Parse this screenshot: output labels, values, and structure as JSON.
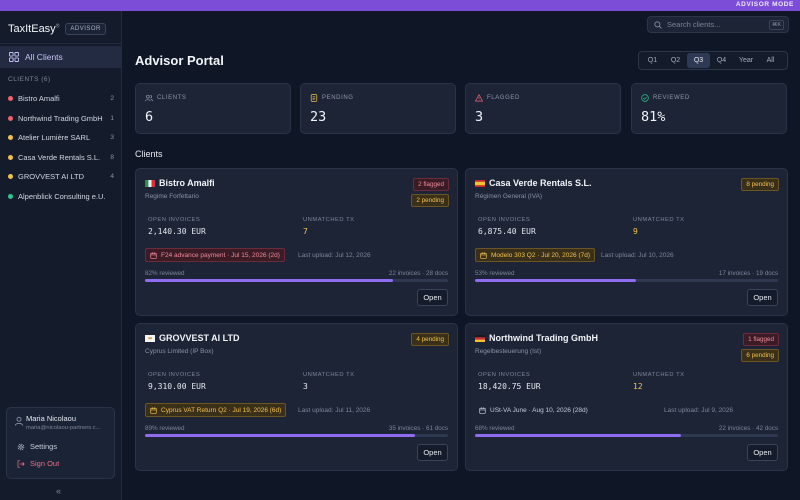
{
  "topbar": {
    "mode_label": "ADVISOR MODE",
    "color": "#7c4dd6"
  },
  "brand": {
    "name": "TaxItEasy",
    "mark": "®",
    "badge": "ADVISOR"
  },
  "sidebar": {
    "all_clients_label": "All Clients",
    "clients_heading": "CLIENTS (6)",
    "clients": [
      {
        "name": "Bistro Amalfi",
        "count": "2",
        "dot": "#f0616d"
      },
      {
        "name": "Northwind Trading GmbH",
        "count": "1",
        "dot": "#f0616d"
      },
      {
        "name": "Atelier Lumière SARL",
        "count": "3",
        "dot": "#f2c14d"
      },
      {
        "name": "Casa Verde Rentals S.L.",
        "count": "8",
        "dot": "#f2c14d"
      },
      {
        "name": "GROVVEST AI LTD",
        "count": "4",
        "dot": "#f2c14d"
      },
      {
        "name": "Alpenblick Consulting e.U.",
        "count": "",
        "dot": "#2fc58f"
      }
    ],
    "user": {
      "name": "Maria Nicolaou",
      "email": "maria@nicolaou-partners.c..."
    },
    "settings_label": "Settings",
    "signout_label": "Sign Out",
    "collapse_icon": "«"
  },
  "search": {
    "placeholder": "Search clients...",
    "shortcut": "⌘K"
  },
  "page": {
    "title": "Advisor Portal",
    "section_title": "Clients"
  },
  "periods": [
    "Q1",
    "Q2",
    "Q3",
    "Q4",
    "Year",
    "All"
  ],
  "active_period": "Q3",
  "stats": [
    {
      "label": "CLIENTS",
      "value": "6",
      "icon": "users-icon",
      "color": "#8f98aa"
    },
    {
      "label": "PENDING",
      "value": "23",
      "icon": "document-icon",
      "color": "#f2c14d"
    },
    {
      "label": "FLAGGED",
      "value": "3",
      "icon": "warning-icon",
      "color": "#f0616d"
    },
    {
      "label": "REVIEWED",
      "value": "81%",
      "icon": "check-circle-icon",
      "color": "#2fc58f"
    }
  ],
  "metric_labels": {
    "open_invoices": "OPEN INVOICES",
    "unmatched_tx": "UNMATCHED TX"
  },
  "open_label": "Open",
  "cards": [
    {
      "name": "Bistro Amalfi",
      "regime": "Regime Forfettario",
      "flag": "italy-flag-icon",
      "badges": [
        {
          "text": "2 flagged",
          "tone": "red"
        },
        {
          "text": "2 pending",
          "tone": "amber"
        }
      ],
      "open_invoices": "2,140.30 EUR",
      "unmatched_tx": "7",
      "unmatched_warn": true,
      "deadline": "F24 advance payment · Jul 15, 2026 (2d)",
      "deadline_tone": "red",
      "last_upload": "Last upload: Jul 12, 2026",
      "reviewed_label": "82% reviewed",
      "reviewed_pct": 82,
      "docs": "22 invoices · 28 docs"
    },
    {
      "name": "Casa Verde Rentals S.L.",
      "regime": "Régimen General (IVA)",
      "flag": "spain-flag-icon",
      "badges": [
        {
          "text": "8 pending",
          "tone": "amber"
        }
      ],
      "open_invoices": "6,875.40 EUR",
      "unmatched_tx": "9",
      "unmatched_warn": true,
      "deadline": "Modelo 303 Q2 · Jul 20, 2026 (7d)",
      "deadline_tone": "amber",
      "last_upload": "Last upload: Jul 10, 2026",
      "reviewed_label": "53% reviewed",
      "reviewed_pct": 53,
      "docs": "17 invoices · 19 docs"
    },
    {
      "name": "GROVVEST AI LTD",
      "regime": "Cyprus Limited (IP Box)",
      "flag": "cyprus-flag-icon",
      "badges": [
        {
          "text": "4 pending",
          "tone": "amber"
        }
      ],
      "open_invoices": "9,310.00 EUR",
      "unmatched_tx": "3",
      "unmatched_warn": false,
      "deadline": "Cyprus VAT Return Q2 · Jul 19, 2026 (6d)",
      "deadline_tone": "amber",
      "last_upload": "Last upload: Jul 11, 2026",
      "reviewed_label": "89% reviewed",
      "reviewed_pct": 89,
      "docs": "35 invoices · 61 docs"
    },
    {
      "name": "Northwind Trading GmbH",
      "regime": "Regelbesteuerung (Ist)",
      "flag": "germany-flag-icon",
      "badges": [
        {
          "text": "1 flagged",
          "tone": "red"
        },
        {
          "text": "6 pending",
          "tone": "amber"
        }
      ],
      "open_invoices": "18,420.75 EUR",
      "unmatched_tx": "12",
      "unmatched_warn": true,
      "deadline": "USt-VA June · Aug 10, 2026 (28d)",
      "deadline_tone": "plain",
      "last_upload": "Last upload: Jul 9, 2026",
      "reviewed_label": "68% reviewed",
      "reviewed_pct": 68,
      "docs": "22 invoices · 42 docs"
    }
  ]
}
